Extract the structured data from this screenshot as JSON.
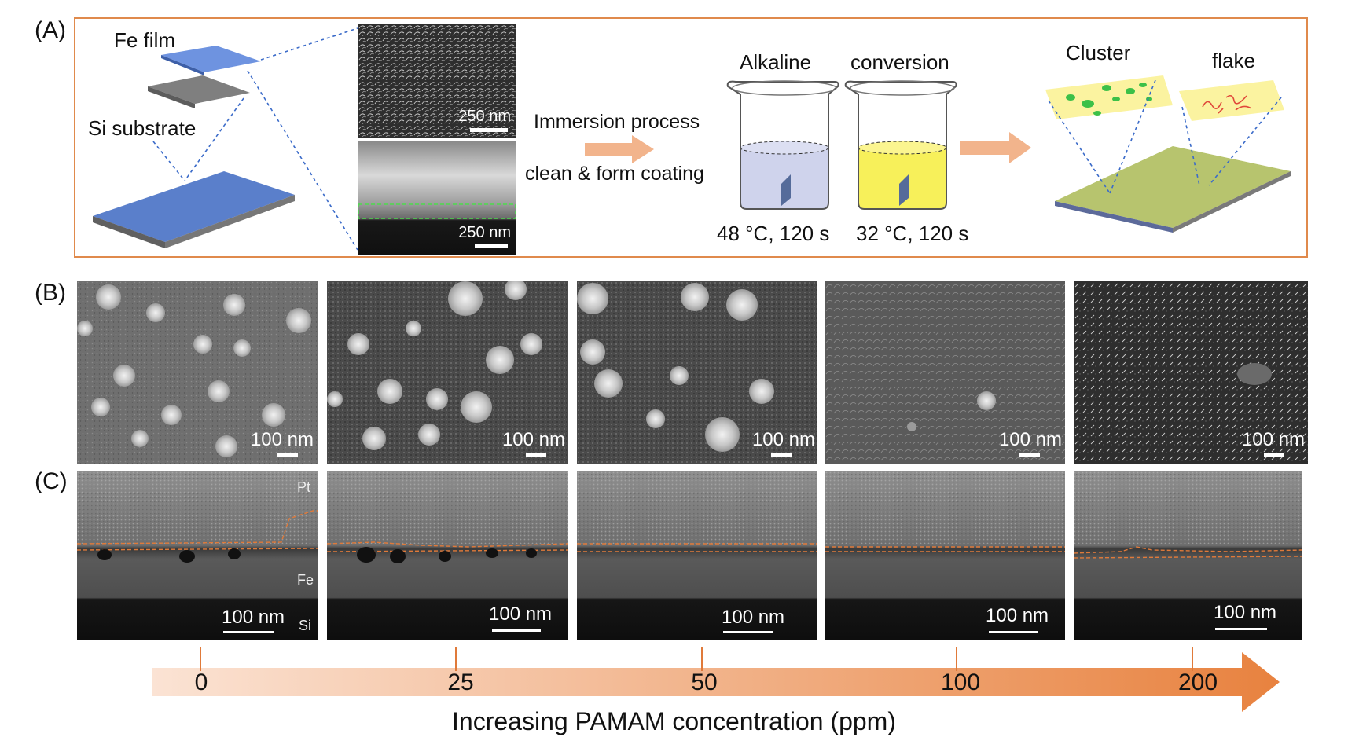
{
  "panels": {
    "a": "(A)",
    "b": "(B)",
    "c": "(C)"
  },
  "schematic": {
    "fe_film": "Fe film",
    "si_substrate": "Si substrate",
    "sem_top_scale": "250 nm",
    "sem_cross_scale": "250 nm",
    "immersion": "Immersion process",
    "clean_form": "clean & form coating",
    "alkaline": "Alkaline",
    "conversion": "conversion",
    "cond_alkaline": "48 °C, 120 s",
    "cond_conversion": "32 °C, 120 s",
    "cluster": "Cluster",
    "flake": "flake"
  },
  "row_b": {
    "scales": [
      "100 nm",
      "100 nm",
      "100 nm",
      "100 nm",
      "100 nm"
    ]
  },
  "row_c": {
    "scales": [
      "100 nm",
      "100 nm",
      "100 nm",
      "100 nm",
      "100 nm"
    ],
    "pt": "Pt",
    "fe": "Fe",
    "si": "Si"
  },
  "axis": {
    "ticks": [
      "0",
      "25",
      "50",
      "100",
      "200"
    ],
    "label": "Increasing PAMAM concentration (ppm)",
    "color_start": "#fbe3d4",
    "color_end": "#e8823f"
  },
  "colors": {
    "box_border": "#e08a4c",
    "blue_plate": "#4f78c4",
    "alkaline_liquid": "#cfd3ec",
    "conversion_liquid": "#f7f05a",
    "arrow": "#f2b48c",
    "coating": "#b7c46e",
    "note_paper": "#fbf3a0"
  }
}
